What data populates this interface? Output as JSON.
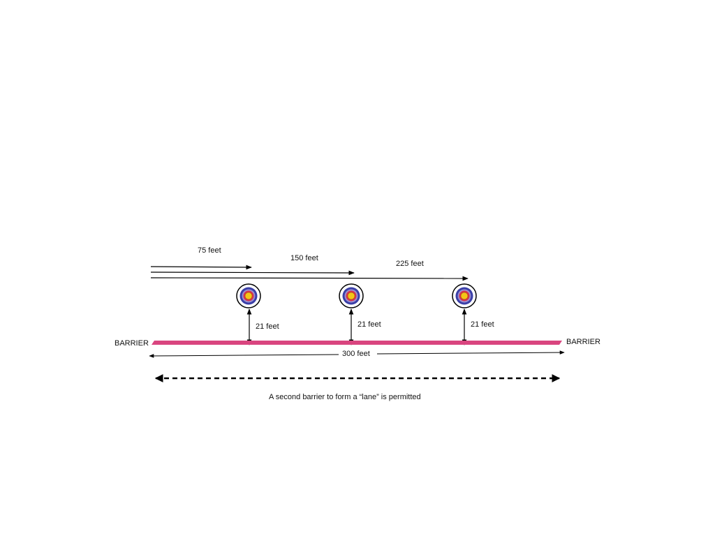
{
  "colors": {
    "barrier": "#d9457f",
    "line": "#000000",
    "target_outer": "#ffffff",
    "target_blue": "#3a3fa8",
    "target_lavender": "#9b8fd0",
    "target_red": "#d8344a",
    "target_gold": "#f5c518"
  },
  "distances": {
    "d75": "75 feet",
    "d150": "150 feet",
    "d225": "225 feet",
    "total": "300 feet"
  },
  "offsets": {
    "t1": "21 feet",
    "t2": "21 feet",
    "t3": "21 feet"
  },
  "barrier_labels": {
    "left": "BARRIER",
    "right": "BARRIER"
  },
  "note": "A second barrier to form a “lane” is permitted",
  "icons": {
    "target": "archery-target-icon"
  }
}
